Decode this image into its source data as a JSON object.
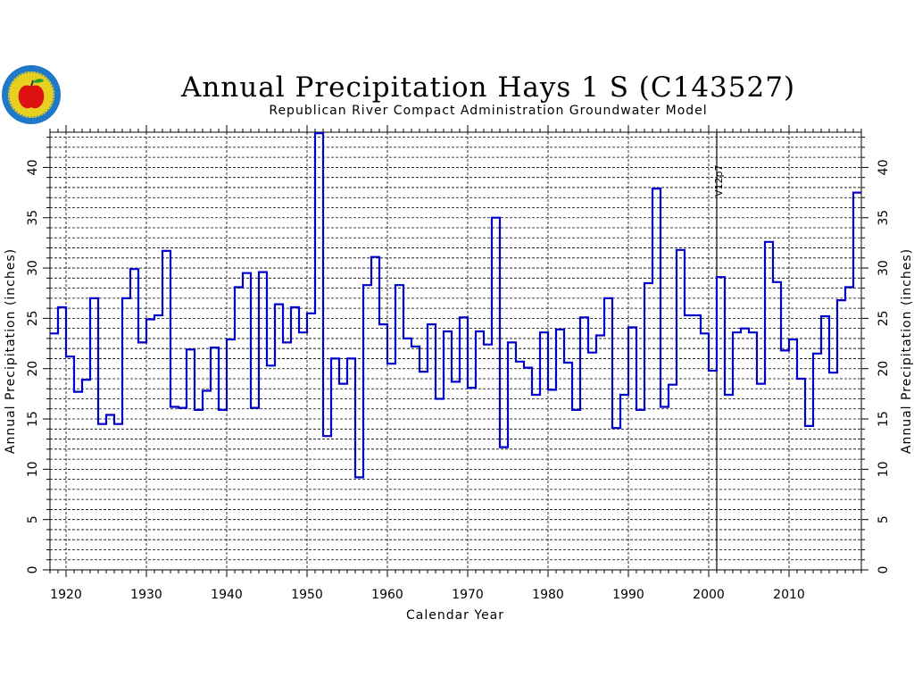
{
  "chart_data": {
    "type": "line",
    "step": true,
    "title": "Annual Precipitation Hays 1 S (C143527)",
    "subtitle": "Republican River Compact Administration Groundwater Model",
    "xlabel": "Calendar Year",
    "ylabel": "Annual Precipitation (inches)",
    "xlim": [
      1918,
      2019
    ],
    "ylim": [
      0,
      43.5
    ],
    "x_ticks": [
      1920,
      1930,
      1940,
      1950,
      1960,
      1970,
      1980,
      1990,
      2000,
      2010
    ],
    "y_ticks": [
      0,
      5,
      10,
      15,
      20,
      25,
      30,
      35,
      40
    ],
    "grid": true,
    "line_color": "#0000cc",
    "annotation": {
      "label": "V12p7",
      "x": 2001
    },
    "series": [
      {
        "x": [
          1918,
          1919,
          1920,
          1921,
          1922,
          1923,
          1924,
          1925,
          1926,
          1927,
          1928,
          1929,
          1930,
          1931,
          1932,
          1933,
          1934,
          1935,
          1936,
          1937,
          1938,
          1939,
          1940,
          1941,
          1942,
          1943,
          1944,
          1945,
          1946,
          1947,
          1948,
          1949,
          1950,
          1951,
          1952,
          1953,
          1954,
          1955,
          1956,
          1957,
          1958,
          1959,
          1960,
          1961,
          1962,
          1963,
          1964,
          1965,
          1966,
          1967,
          1968,
          1969,
          1970,
          1971,
          1972,
          1973,
          1974,
          1975,
          1976,
          1977,
          1978,
          1979,
          1980,
          1981,
          1982,
          1983,
          1984,
          1985,
          1986,
          1987,
          1988,
          1989,
          1990,
          1991,
          1992,
          1993,
          1994,
          1995,
          1996,
          1997,
          1998,
          1999,
          2000,
          2001,
          2002,
          2003,
          2004,
          2005,
          2006,
          2007,
          2008,
          2009,
          2010,
          2011,
          2012,
          2013,
          2014,
          2015,
          2016,
          2017,
          2018
        ],
        "values": [
          23.5,
          26.1,
          21.2,
          17.7,
          18.9,
          27.0,
          14.5,
          15.4,
          14.5,
          27.0,
          29.9,
          22.6,
          24.9,
          25.3,
          31.7,
          16.2,
          16.1,
          21.9,
          15.9,
          17.8,
          22.1,
          15.9,
          22.9,
          28.1,
          29.5,
          16.1,
          29.6,
          20.3,
          26.4,
          22.6,
          26.1,
          23.6,
          25.5,
          43.4,
          13.3,
          21.0,
          18.5,
          21.0,
          9.2,
          28.3,
          31.1,
          24.4,
          20.5,
          28.3,
          23.0,
          22.2,
          19.7,
          24.4,
          17.0,
          23.7,
          18.7,
          25.1,
          18.1,
          23.7,
          22.4,
          35.0,
          12.2,
          22.6,
          20.7,
          20.1,
          17.4,
          23.6,
          17.9,
          23.9,
          20.6,
          15.9,
          25.1,
          21.6,
          23.3,
          27.0,
          14.1,
          17.4,
          24.1,
          15.9,
          28.5,
          37.9,
          16.2,
          18.4,
          31.8,
          25.3,
          25.3,
          23.5,
          19.8,
          29.1,
          17.4,
          23.6,
          24.0,
          23.6,
          18.5,
          32.6,
          28.6,
          21.8,
          22.9,
          19.0,
          14.3,
          21.5,
          25.2,
          19.6,
          26.8,
          28.1,
          37.5
        ]
      }
    ]
  },
  "logo": {
    "name": "rrca-seal",
    "colors": [
      "#1f78c8",
      "#e8d020",
      "#dd1111",
      "#22a030"
    ]
  }
}
